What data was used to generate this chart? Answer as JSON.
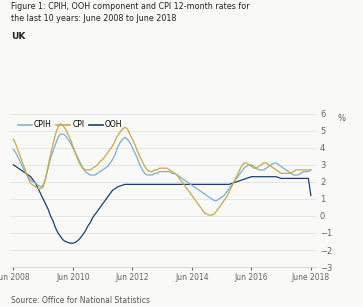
{
  "title_line1": "Figure 1: CPIH, OOH component and CPI 12-month rates for",
  "title_line2": "the last 10 years: June 2008 to June 2018",
  "subtitle": "UK",
  "source": "Source: Office for National Statistics",
  "ylabel": "%",
  "ylim": [
    -3,
    6
  ],
  "yticks": [
    -3,
    -2,
    -1,
    0,
    1,
    2,
    3,
    4,
    5,
    6
  ],
  "colors": {
    "CPIH": "#7baed0",
    "CPI": "#c8a84b",
    "OOH": "#1c3f6e"
  },
  "xtick_labels": [
    "Jun 2008",
    "Jun 2010",
    "Jun 2012",
    "Jun 2014",
    "Jun 2016",
    "June 2018"
  ],
  "bg_color": "#f9f9f7",
  "CPIH": [
    3.9,
    3.7,
    3.4,
    3.1,
    2.8,
    2.5,
    2.3,
    2.1,
    2.0,
    1.9,
    1.8,
    1.7,
    1.8,
    2.2,
    2.8,
    3.4,
    3.8,
    4.2,
    4.6,
    4.8,
    4.8,
    4.7,
    4.5,
    4.3,
    4.0,
    3.7,
    3.4,
    3.1,
    2.8,
    2.6,
    2.5,
    2.4,
    2.4,
    2.4,
    2.5,
    2.6,
    2.7,
    2.8,
    2.9,
    3.1,
    3.3,
    3.6,
    4.0,
    4.3,
    4.5,
    4.6,
    4.5,
    4.3,
    4.0,
    3.7,
    3.4,
    3.0,
    2.7,
    2.5,
    2.4,
    2.4,
    2.4,
    2.5,
    2.5,
    2.6,
    2.6,
    2.6,
    2.6,
    2.6,
    2.5,
    2.5,
    2.4,
    2.3,
    2.2,
    2.1,
    2.0,
    1.9,
    1.8,
    1.7,
    1.6,
    1.5,
    1.4,
    1.3,
    1.2,
    1.1,
    1.0,
    0.9,
    0.9,
    1.0,
    1.1,
    1.2,
    1.4,
    1.6,
    1.8,
    2.0,
    2.2,
    2.4,
    2.6,
    2.8,
    2.9,
    3.0,
    3.0,
    2.9,
    2.8,
    2.7,
    2.7,
    2.7,
    2.8,
    2.9,
    3.0,
    3.1,
    3.1,
    3.0,
    2.9,
    2.8,
    2.7,
    2.6,
    2.5,
    2.4,
    2.4,
    2.4,
    2.5,
    2.6,
    2.6,
    2.6,
    2.7
  ],
  "CPI": [
    4.5,
    4.2,
    3.8,
    3.4,
    3.0,
    2.6,
    2.2,
    1.9,
    1.8,
    1.7,
    1.6,
    1.6,
    1.7,
    2.2,
    2.9,
    3.6,
    4.2,
    4.8,
    5.2,
    5.4,
    5.3,
    5.1,
    4.8,
    4.5,
    4.1,
    3.7,
    3.3,
    3.0,
    2.8,
    2.7,
    2.7,
    2.7,
    2.8,
    2.9,
    3.0,
    3.2,
    3.3,
    3.5,
    3.7,
    3.9,
    4.1,
    4.4,
    4.7,
    4.9,
    5.1,
    5.2,
    5.1,
    4.8,
    4.5,
    4.2,
    3.8,
    3.5,
    3.2,
    2.9,
    2.7,
    2.6,
    2.6,
    2.7,
    2.7,
    2.8,
    2.8,
    2.8,
    2.8,
    2.7,
    2.6,
    2.5,
    2.4,
    2.2,
    2.0,
    1.8,
    1.6,
    1.4,
    1.2,
    1.0,
    0.8,
    0.6,
    0.4,
    0.2,
    0.1,
    0.05,
    0.05,
    0.1,
    0.3,
    0.5,
    0.7,
    0.9,
    1.1,
    1.4,
    1.7,
    2.0,
    2.3,
    2.6,
    2.9,
    3.1,
    3.1,
    3.0,
    2.9,
    2.8,
    2.8,
    2.9,
    3.0,
    3.1,
    3.1,
    3.0,
    2.9,
    2.8,
    2.7,
    2.6,
    2.5,
    2.5,
    2.5,
    2.5,
    2.5,
    2.6,
    2.7,
    2.7,
    2.7,
    2.7,
    2.7,
    2.7,
    2.7
  ],
  "OOH": [
    3.0,
    2.9,
    2.8,
    2.7,
    2.6,
    2.5,
    2.4,
    2.3,
    2.1,
    1.9,
    1.6,
    1.3,
    1.0,
    0.7,
    0.4,
    0.0,
    -0.3,
    -0.7,
    -1.0,
    -1.2,
    -1.4,
    -1.5,
    -1.55,
    -1.6,
    -1.6,
    -1.55,
    -1.45,
    -1.3,
    -1.1,
    -0.9,
    -0.6,
    -0.4,
    -0.1,
    0.1,
    0.3,
    0.5,
    0.7,
    0.9,
    1.1,
    1.3,
    1.5,
    1.6,
    1.7,
    1.75,
    1.8,
    1.85,
    1.85,
    1.85,
    1.85,
    1.85,
    1.85,
    1.85,
    1.85,
    1.85,
    1.85,
    1.85,
    1.85,
    1.85,
    1.85,
    1.85,
    1.85,
    1.85,
    1.85,
    1.85,
    1.85,
    1.85,
    1.85,
    1.85,
    1.85,
    1.85,
    1.85,
    1.85,
    1.85,
    1.85,
    1.85,
    1.85,
    1.85,
    1.85,
    1.85,
    1.85,
    1.85,
    1.85,
    1.85,
    1.85,
    1.85,
    1.85,
    1.85,
    1.85,
    1.9,
    1.95,
    2.0,
    2.05,
    2.1,
    2.15,
    2.2,
    2.25,
    2.3,
    2.3,
    2.3,
    2.3,
    2.3,
    2.3,
    2.3,
    2.3,
    2.3,
    2.3,
    2.3,
    2.25,
    2.2,
    2.2,
    2.2,
    2.2,
    2.2,
    2.2,
    2.2,
    2.2,
    2.2,
    2.2,
    2.2,
    2.2,
    1.2
  ]
}
